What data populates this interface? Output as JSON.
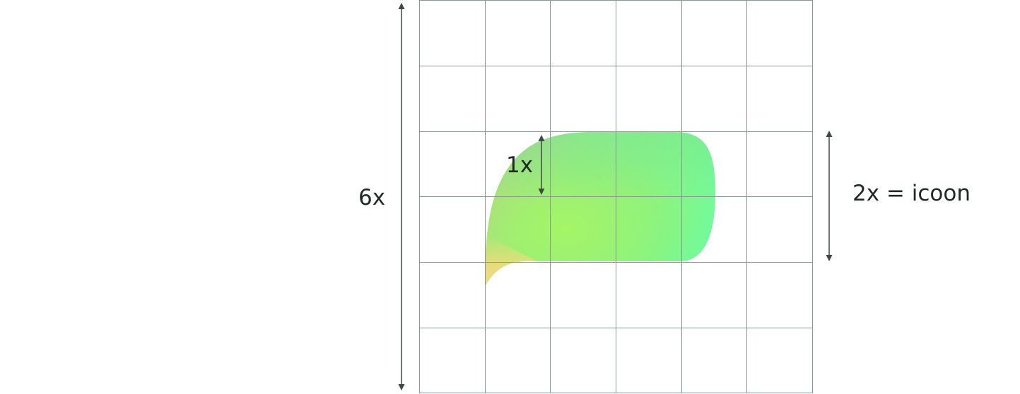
{
  "labels": {
    "height_total": "6x",
    "unit": "1x",
    "icon_height": "2x = icoon"
  },
  "grid": {
    "columns": 6,
    "rows": 6,
    "line_color": "#8a9690"
  },
  "shape": {
    "name": "speech-bubble",
    "gradient_colors": {
      "top_left": "#f2a98a",
      "bottom_left": "#fbd880",
      "center": "#a6f566",
      "top_right": "#62e8a2",
      "right": "#74fd9a"
    }
  },
  "dimension_color": "#3f4a48"
}
